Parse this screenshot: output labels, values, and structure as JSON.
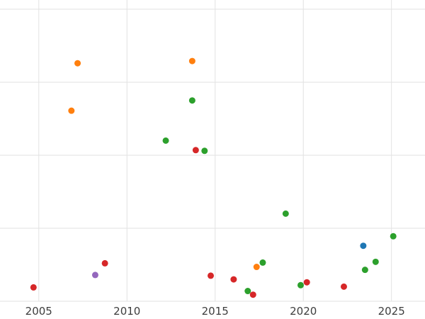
{
  "chart_data": {
    "type": "scatter",
    "title": "",
    "xlabel": "",
    "ylabel": "",
    "xlim": [
      2002.8,
      2026.9
    ],
    "ylim": [
      -0.243,
      4.126
    ],
    "xticks": [
      2005,
      2010,
      2015,
      2020,
      2025
    ],
    "xtick_labels": [
      "2005",
      "2010",
      "2015",
      "2020",
      "2025"
    ],
    "ygrid_values": [
      0,
      1,
      2,
      3,
      4
    ],
    "grid": true,
    "legend": false,
    "marker_radius": 4.5,
    "grid_color": "#e2e2e2",
    "tick_color": "#3d3d3d",
    "background": "#ffffff",
    "series": [
      {
        "name": "orange",
        "color": "#ff7f0e",
        "points": [
          [
            2006.85,
            2.61
          ],
          [
            2007.2,
            3.26
          ],
          [
            2013.7,
            3.29
          ],
          [
            2017.35,
            0.47
          ]
        ]
      },
      {
        "name": "green",
        "color": "#2ca02c",
        "points": [
          [
            2012.2,
            2.2
          ],
          [
            2013.7,
            2.75
          ],
          [
            2014.4,
            2.06
          ],
          [
            2016.85,
            0.14
          ],
          [
            2017.7,
            0.53
          ],
          [
            2019.0,
            1.2
          ],
          [
            2019.85,
            0.22
          ],
          [
            2023.5,
            0.43
          ],
          [
            2024.1,
            0.54
          ],
          [
            2025.1,
            0.89
          ]
        ]
      },
      {
        "name": "red",
        "color": "#d62728",
        "points": [
          [
            2004.7,
            0.19
          ],
          [
            2008.75,
            0.52
          ],
          [
            2013.9,
            2.07
          ],
          [
            2014.75,
            0.35
          ],
          [
            2016.05,
            0.3
          ],
          [
            2017.15,
            0.09
          ],
          [
            2020.2,
            0.26
          ],
          [
            2022.3,
            0.2
          ]
        ]
      },
      {
        "name": "purple",
        "color": "#9467bd",
        "points": [
          [
            2008.2,
            0.36
          ]
        ]
      },
      {
        "name": "blue",
        "color": "#1f77b4",
        "points": [
          [
            2023.4,
            0.76
          ]
        ]
      }
    ]
  }
}
